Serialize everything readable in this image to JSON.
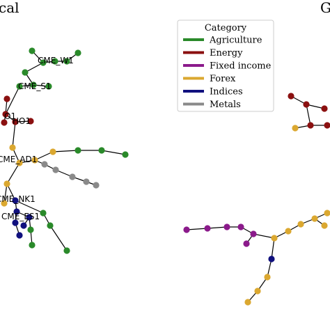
{
  "panels": [
    {
      "title": "cal"
    },
    {
      "title": "G"
    }
  ],
  "legend": {
    "title": "Category",
    "entries": [
      {
        "key": "agriculture",
        "label": "Agriculture",
        "color": "#2a8a2a"
      },
      {
        "key": "energy",
        "label": "Energy",
        "color": "#8b1010"
      },
      {
        "key": "fixed",
        "label": "Fixed income",
        "color": "#8b1a8b"
      },
      {
        "key": "forex",
        "label": "Forex",
        "color": "#dba830"
      },
      {
        "key": "indices",
        "label": "Indices",
        "color": "#10107e"
      },
      {
        "key": "metals",
        "label": "Metals",
        "color": "#8a8a8a"
      }
    ]
  },
  "node_labels": {
    "w1": "CME_W1",
    "s1": "CME_S1",
    "o1": "O1",
    "ho1": "HO1",
    "ad1": "CME_AD1",
    "nk1": "CME_NK1",
    "es1": "CME_ES1"
  }
}
